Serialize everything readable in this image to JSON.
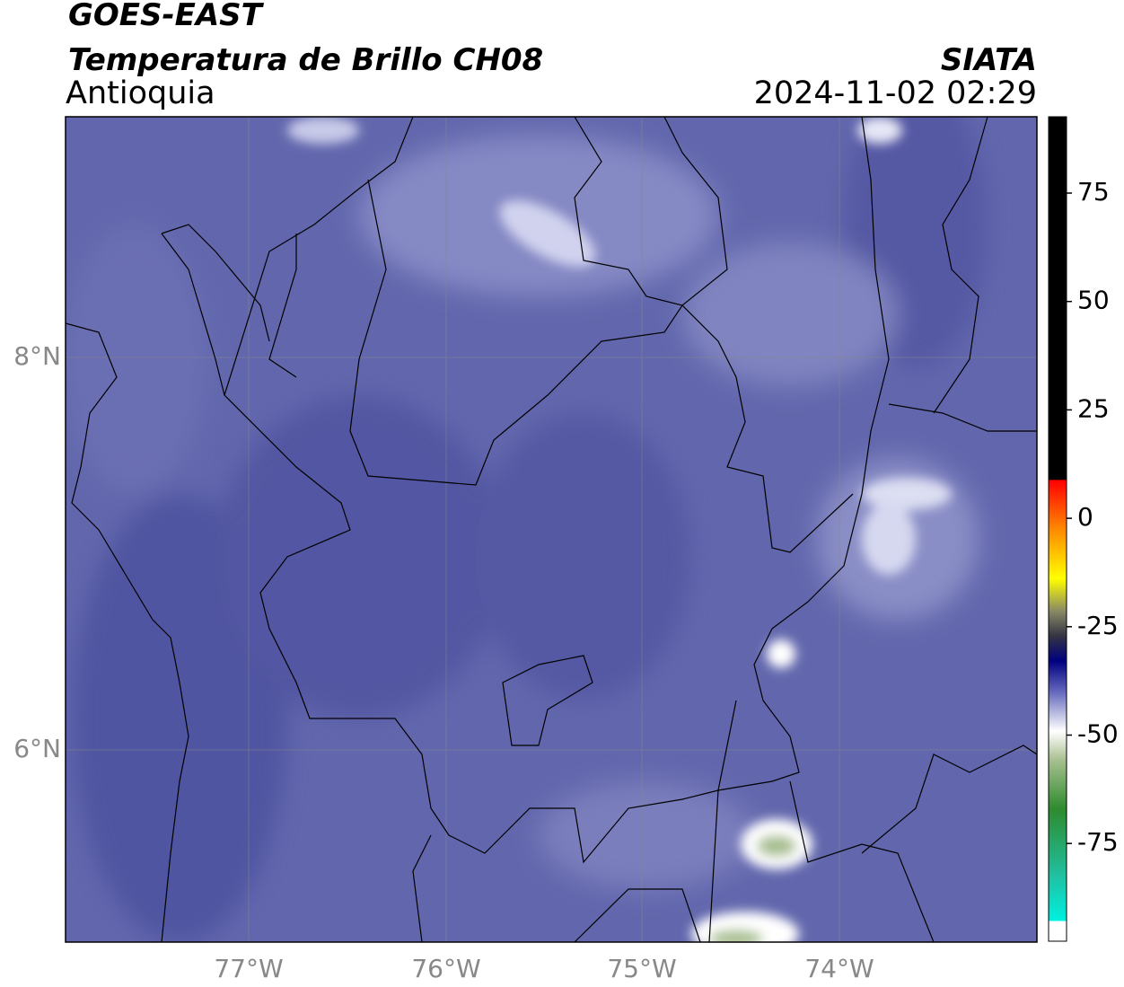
{
  "header": {
    "title": "GOES-EAST",
    "subtitle": "Temperatura de Brillo CH08",
    "region": "Antioquia",
    "source": "SIATA",
    "datetime": "2024-11-02 02:29"
  },
  "map": {
    "lat_labels": [
      "8°N",
      "6°N"
    ],
    "lon_labels": [
      "77°W",
      "76°W",
      "75°W",
      "74°W"
    ]
  },
  "colorbar": {
    "ticks": [
      "75",
      "50",
      "25",
      "0",
      "-25",
      "-50",
      "-75"
    ]
  }
}
